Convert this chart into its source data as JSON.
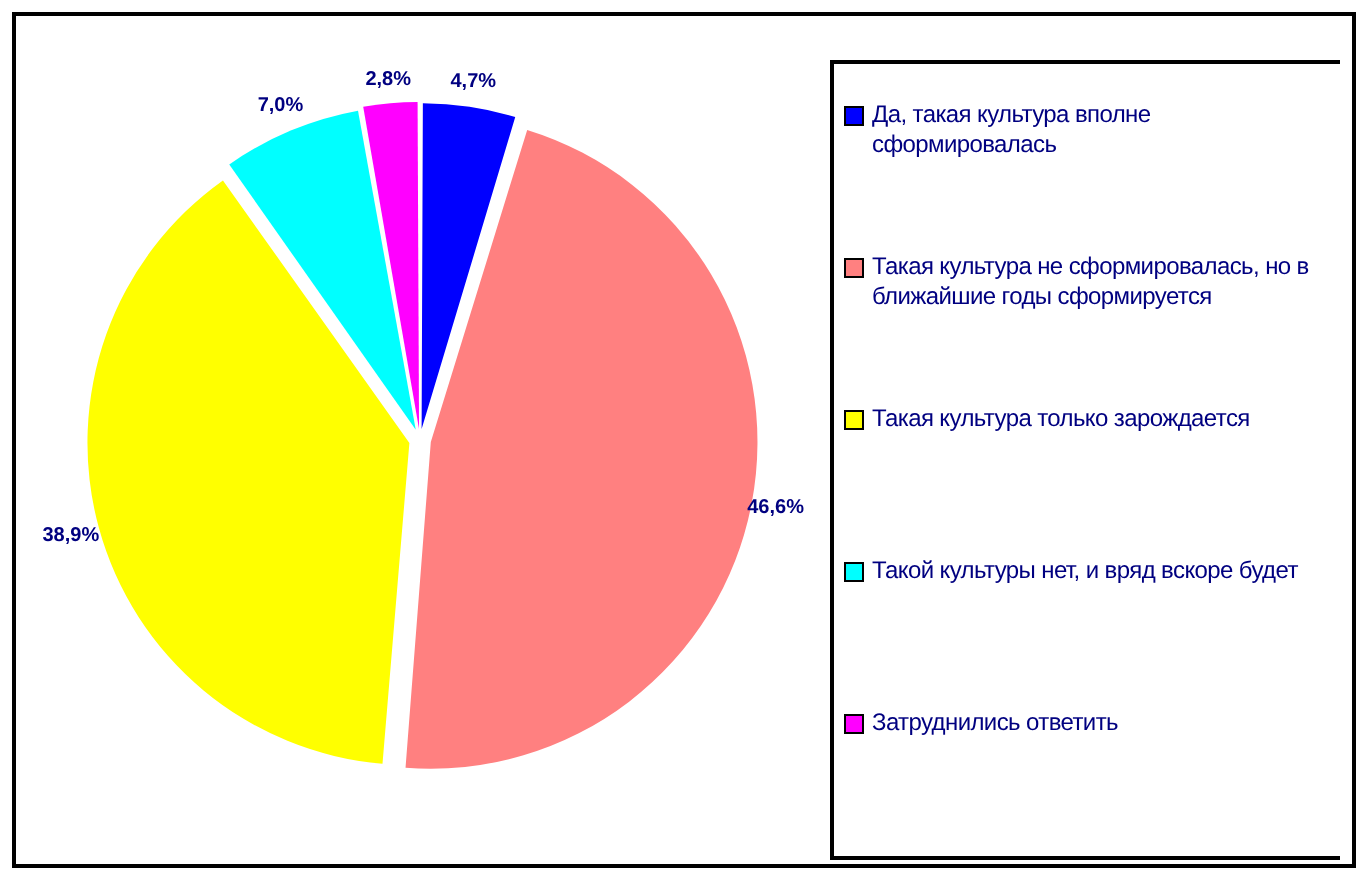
{
  "chart_data": {
    "type": "pie",
    "categories": [
      "Да, такая культура вполне сформировалась",
      "Такая культура не сформировалась, но в ближайшие годы сформируется",
      "Такая культура только зарождается",
      "Такой культуры нет, и вряд вскоре будет",
      "Затруднились ответить"
    ],
    "values": [
      4.7,
      46.6,
      38.9,
      7.0,
      2.8
    ],
    "value_labels": [
      "4,7%",
      "46,6%",
      "38,9%",
      "7,0%",
      "2,8%"
    ],
    "colors": [
      "#0000ff",
      "#ff8080",
      "#ffff00",
      "#00ffff",
      "#ff00ff"
    ],
    "legend": "right"
  }
}
